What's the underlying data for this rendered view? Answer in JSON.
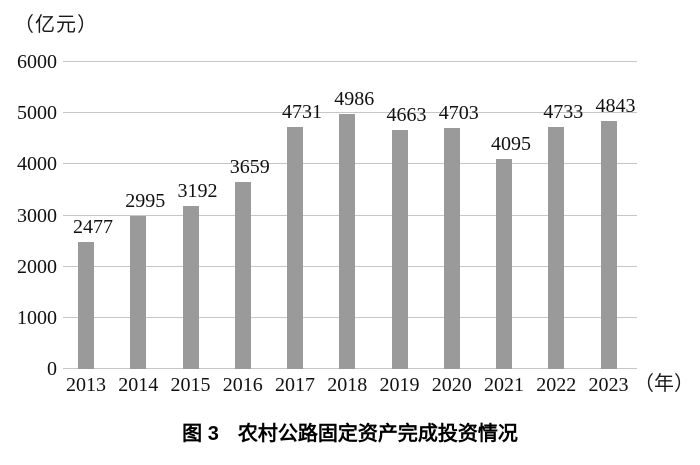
{
  "chart_data": {
    "type": "bar",
    "title": "图 3 农村公路固定资产完成投资情况",
    "categories": [
      "2013",
      "2014",
      "2015",
      "2016",
      "2017",
      "2018",
      "2019",
      "2020",
      "2021",
      "2022",
      "2023"
    ],
    "values": [
      2477,
      2995,
      3192,
      3659,
      4731,
      4986,
      4663,
      4703,
      4095,
      4733,
      4843
    ],
    "xlabel": "年",
    "ylabel": "亿元",
    "y_unit": "（亿元）",
    "x_unit": "（年）",
    "ylim": [
      0,
      6000
    ],
    "y_ticks": [
      0,
      1000,
      2000,
      3000,
      4000,
      5000,
      6000
    ],
    "grid": true,
    "legend": "none",
    "bar_color": "#9a9a9a",
    "gridline_color": "#c6c6c6"
  },
  "caption": {
    "prefix": "图 3",
    "title": "农村公路固定资产完成投资情况"
  }
}
